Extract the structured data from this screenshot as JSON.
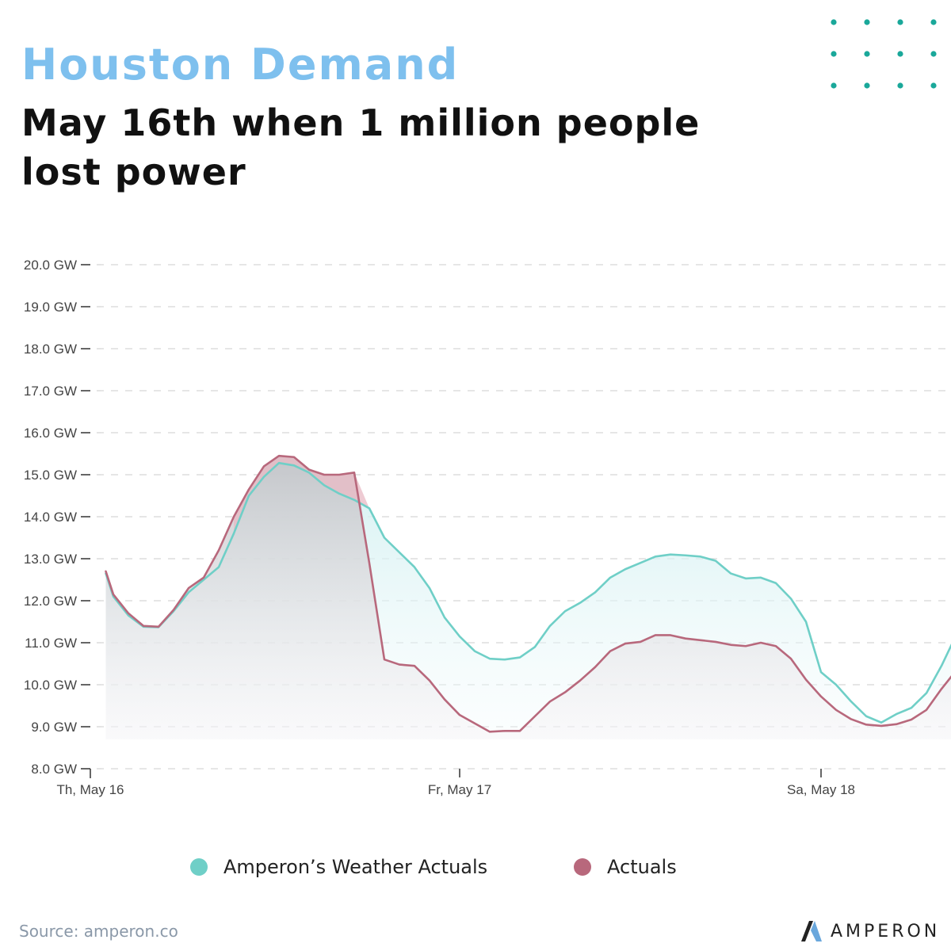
{
  "header": {
    "title": "Houston Demand",
    "subtitle": "May 16th when 1 million people lost power"
  },
  "footer": {
    "source": "Source: amperon.co",
    "brand": "AMPERON"
  },
  "colors": {
    "title": "#7ec0ee",
    "weather_actuals": "#6fcfc7",
    "actuals": "#b8687c",
    "dots": "#1aa89a",
    "grid": "#d6d6d6"
  },
  "chart_data": {
    "type": "area",
    "title": "",
    "xlabel": "",
    "ylabel": "",
    "ylim": [
      8,
      20
    ],
    "grid": true,
    "legend_position": "bottom",
    "y_ticks": [
      "8.0 GW",
      "9.0 GW",
      "10.0 GW",
      "11.0 GW",
      "12.0 GW",
      "13.0 GW",
      "14.0 GW",
      "15.0 GW",
      "16.0 GW",
      "17.0 GW",
      "18.0 GW",
      "19.0 GW",
      "20.0 GW"
    ],
    "y_tick_values": [
      8,
      9,
      10,
      11,
      12,
      13,
      14,
      15,
      16,
      17,
      18,
      19,
      20
    ],
    "x_ticks": [
      {
        "label": "Th, May 16",
        "x": 0
      },
      {
        "label": "Fr, May 17",
        "x": 24
      },
      {
        "label": "Sa, May 18",
        "x": 48
      }
    ],
    "x_unit": "hours since Th, May 16 00:00",
    "xlim": [
      0,
      57
    ],
    "series": [
      {
        "name": "Amperon’s Weather  Actuals",
        "color": "#6fcfc7",
        "x": [
          0.5,
          1,
          2,
          3,
          4,
          5,
          6,
          7,
          8,
          9,
          10,
          11,
          12,
          13,
          14,
          15,
          16,
          17,
          18,
          19,
          20,
          21,
          22,
          23,
          24,
          25,
          26,
          27,
          28,
          29,
          30,
          31,
          32,
          33,
          34,
          35,
          36,
          37,
          38,
          39,
          40,
          41,
          42,
          43,
          44,
          45,
          46,
          47,
          48,
          49,
          50,
          51,
          52,
          53,
          54,
          55,
          56,
          57
        ],
        "values": [
          12.65,
          12.1,
          11.65,
          11.38,
          11.37,
          11.75,
          12.2,
          12.5,
          12.8,
          13.6,
          14.5,
          14.95,
          15.28,
          15.22,
          15.05,
          14.75,
          14.55,
          14.4,
          14.2,
          13.5,
          13.15,
          12.8,
          12.3,
          11.6,
          11.15,
          10.8,
          10.62,
          10.6,
          10.65,
          10.9,
          11.4,
          11.75,
          11.95,
          12.2,
          12.55,
          12.75,
          12.9,
          13.05,
          13.1,
          13.08,
          13.05,
          12.95,
          12.65,
          12.53,
          12.55,
          12.42,
          12.05,
          11.5,
          10.3,
          10.0,
          9.6,
          9.25,
          9.1,
          9.3,
          9.45,
          9.8,
          10.45,
          11.2
        ]
      },
      {
        "name": "Actuals",
        "color": "#b8687c",
        "x": [
          0.5,
          1,
          2,
          3,
          4,
          5,
          6,
          7,
          8,
          9,
          10,
          11,
          12,
          13,
          14,
          15,
          16,
          17,
          18,
          19,
          20,
          21,
          22,
          23,
          24,
          25,
          26,
          27,
          28,
          29,
          30,
          31,
          32,
          33,
          34,
          35,
          36,
          37,
          38,
          39,
          40,
          41,
          42,
          43,
          44,
          45,
          46,
          47,
          48,
          49,
          50,
          51,
          52,
          53,
          54,
          55,
          56,
          57
        ],
        "values": [
          12.7,
          12.15,
          11.7,
          11.4,
          11.38,
          11.78,
          12.3,
          12.55,
          13.2,
          14.0,
          14.65,
          15.2,
          15.45,
          15.42,
          15.12,
          15.0,
          15.0,
          15.05,
          12.9,
          10.6,
          10.48,
          10.45,
          10.1,
          9.65,
          9.28,
          9.08,
          8.88,
          8.9,
          8.9,
          9.25,
          9.6,
          9.82,
          10.1,
          10.42,
          10.8,
          10.98,
          11.02,
          11.18,
          11.18,
          11.1,
          11.06,
          11.02,
          10.95,
          10.92,
          11.0,
          10.92,
          10.62,
          10.12,
          9.72,
          9.4,
          9.18,
          9.05,
          9.02,
          9.06,
          9.17,
          9.4,
          9.9,
          10.35
        ]
      }
    ]
  }
}
